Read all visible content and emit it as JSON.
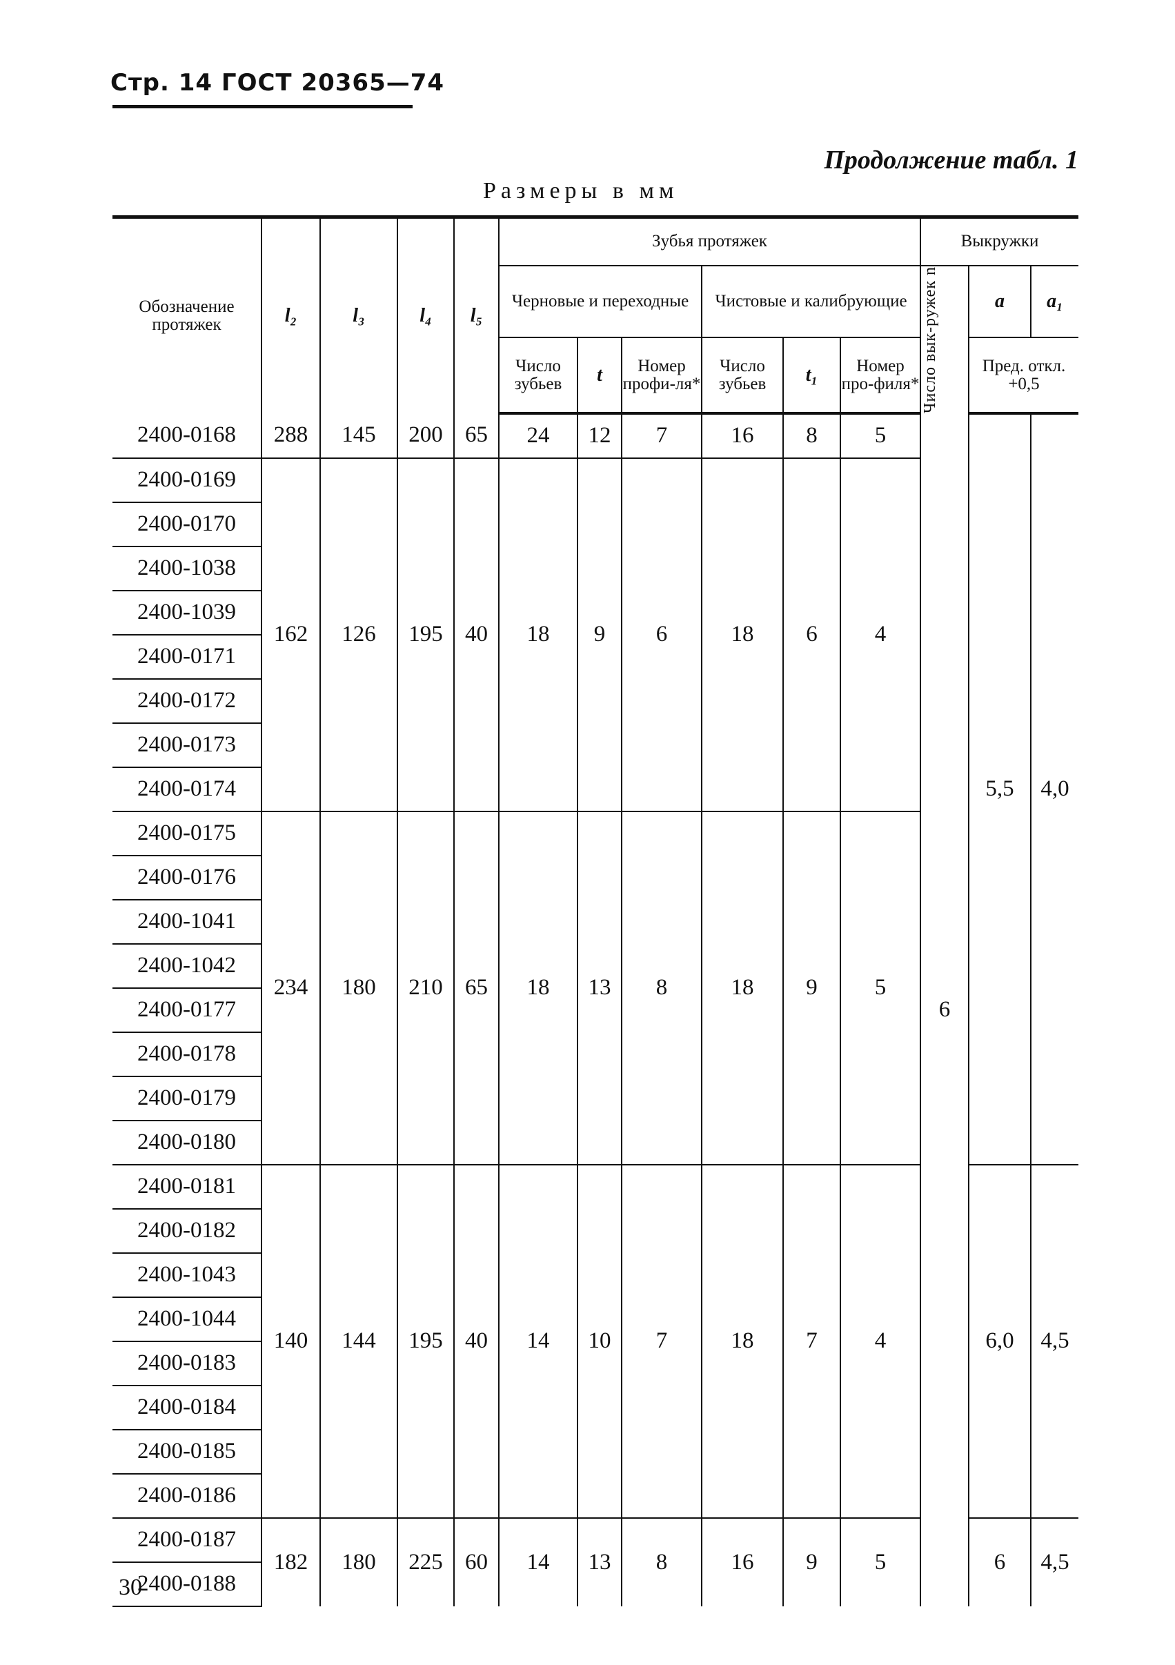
{
  "header": {
    "title": "Стр. 14 ГОСТ  20365—74",
    "continuation": "Продолжение табл. 1",
    "units": "Размеры в мм"
  },
  "columns": {
    "designation": "Обозначение протяжек",
    "l2": "l₂",
    "l3": "l₃",
    "l4": "l₄",
    "l5": "l₅",
    "teeth": "Зубья протяжек",
    "rough": "Черновые и переходные",
    "finish": "Чистовые и калибрующие",
    "count": "Число зубьев",
    "t": "t",
    "profile": "Номер профи-ля*",
    "count2": "Число зубьев",
    "t1": "t₁",
    "profile2": "Номер про-филя*",
    "grooves": "Выкружки",
    "n": "Число вык-ружек n",
    "a": "a",
    "a1": "a₁",
    "tol": "Пред. откл. +0,5"
  },
  "rows": [
    "2400-0168",
    "2400-0169",
    "2400-0170",
    "2400-1038",
    "2400-1039",
    "2400-0171",
    "2400-0172",
    "2400-0173",
    "2400-0174",
    "2400-0175",
    "2400-0176",
    "2400-1041",
    "2400-1042",
    "2400-0177",
    "2400-0178",
    "2400-0179",
    "2400-0180",
    "2400-0181",
    "2400-0182",
    "2400-1043",
    "2400-1044",
    "2400-0183",
    "2400-0184",
    "2400-0185",
    "2400-0186",
    "2400-0187",
    "2400-0188"
  ],
  "groups": [
    {
      "span": 1,
      "values": [
        "288",
        "145",
        "200",
        "65",
        "24",
        "12",
        "7",
        "16",
        "8",
        "5"
      ]
    },
    {
      "span": 8,
      "values": [
        "162",
        "126",
        "195",
        "40",
        "18",
        "9",
        "6",
        "18",
        "6",
        "4"
      ]
    },
    {
      "span": 8,
      "values": [
        "234",
        "180",
        "210",
        "65",
        "18",
        "13",
        "8",
        "18",
        "9",
        "5"
      ]
    },
    {
      "span": 8,
      "values": [
        "140",
        "144",
        "195",
        "40",
        "14",
        "10",
        "7",
        "18",
        "7",
        "4"
      ]
    },
    {
      "span": 2,
      "values": [
        "182",
        "180",
        "225",
        "60",
        "14",
        "13",
        "8",
        "16",
        "9",
        "5"
      ]
    }
  ],
  "n": {
    "span": 27,
    "value": "6"
  },
  "a_groups": [
    {
      "span": 17,
      "a": "5,5",
      "a1": "4,0"
    },
    {
      "span": 8,
      "a": "6,0",
      "a1": "4,5"
    },
    {
      "span": 2,
      "a": "6",
      "a1": "4,5"
    }
  ],
  "page_number": "30"
}
